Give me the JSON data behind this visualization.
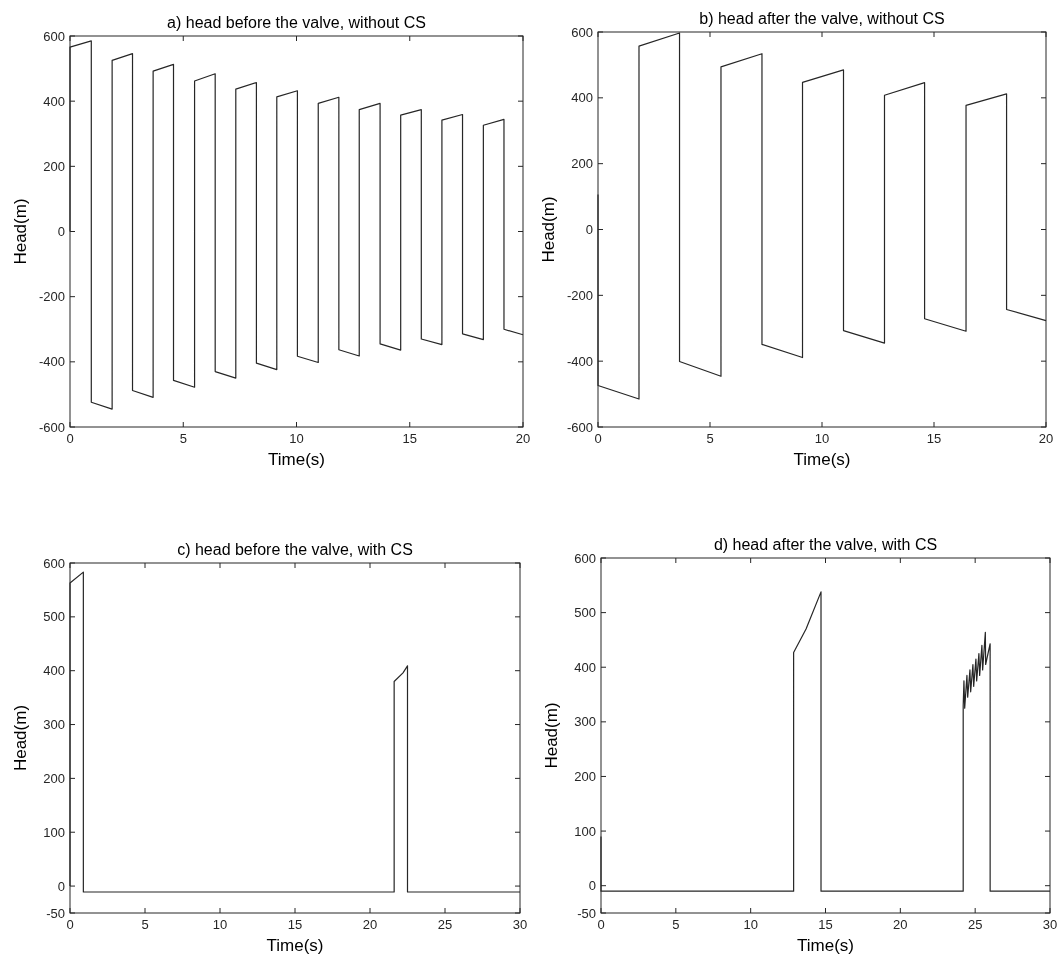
{
  "chart_data": [
    {
      "type": "line",
      "title": "a) head before the valve, without CS",
      "xlabel": "Time(s)",
      "ylabel": "Head(m)",
      "xlim": [
        0,
        20
      ],
      "xticks": [
        0,
        5,
        10,
        15,
        20
      ],
      "ylim": [
        -600,
        600
      ],
      "yticks": [
        -600,
        -400,
        -200,
        0,
        200,
        400,
        600
      ],
      "grid": false,
      "series": [
        {
          "color": "#262626",
          "x": [
            0,
            0,
            0.94,
            0.94,
            1.86,
            1.86,
            2.76,
            2.76,
            3.67,
            3.67,
            4.57,
            4.57,
            5.5,
            5.5,
            6.41,
            6.41,
            7.32,
            7.32,
            8.23,
            8.23,
            9.13,
            9.13,
            10.04,
            10.04,
            10.96,
            10.96,
            11.87,
            11.87,
            12.77,
            12.77,
            13.69,
            13.69,
            14.6,
            14.6,
            15.51,
            15.51,
            16.42,
            16.42,
            17.33,
            17.33,
            18.25,
            18.25,
            19.16,
            19.16,
            20
          ],
          "values": [
            0,
            566,
            585,
            -524,
            -545,
            525,
            546,
            -488,
            -509,
            492,
            513,
            -457,
            -478,
            462,
            484,
            -430,
            -450,
            437,
            457,
            -404,
            -424,
            413,
            432,
            -383,
            -402,
            393,
            412,
            -363,
            -382,
            374,
            393,
            -345,
            -364,
            357,
            374,
            -330,
            -347,
            342,
            359,
            -314,
            -332,
            326,
            344,
            -300,
            -317
          ]
        }
      ]
    },
    {
      "type": "line",
      "title": "b) head after the valve, without CS",
      "xlabel": "Time(s)",
      "ylabel": "Head(m)",
      "xlim": [
        0,
        20
      ],
      "xticks": [
        0,
        5,
        10,
        15,
        20
      ],
      "ylim": [
        -600,
        600
      ],
      "yticks": [
        -600,
        -400,
        -200,
        0,
        200,
        400,
        600
      ],
      "grid": false,
      "series": [
        {
          "color": "#262626",
          "x": [
            0,
            0,
            1.83,
            1.83,
            3.64,
            3.64,
            5.49,
            5.49,
            7.32,
            7.32,
            9.13,
            9.13,
            10.96,
            10.96,
            12.79,
            12.79,
            14.58,
            14.58,
            16.43,
            16.43,
            18.24,
            18.24,
            20
          ],
          "values": [
            106,
            -474,
            -515,
            557,
            597,
            -401,
            -446,
            494,
            534,
            -349,
            -389,
            447,
            485,
            -307,
            -345,
            408,
            446,
            -271,
            -309,
            377,
            412,
            -243,
            -277
          ]
        }
      ]
    },
    {
      "type": "line",
      "title": "c) head before the valve, with CS",
      "xlabel": "Time(s)",
      "ylabel": "Head(m)",
      "xlim": [
        0,
        30
      ],
      "xticks": [
        0,
        5,
        10,
        15,
        20,
        25,
        30
      ],
      "ylim": [
        -50,
        600
      ],
      "yticks": [
        -50,
        0,
        100,
        200,
        300,
        400,
        500,
        600
      ],
      "grid": false,
      "series": [
        {
          "color": "#262626",
          "x": [
            0,
            0,
            0.89,
            0.89,
            21.61,
            21.61,
            22.2,
            22.5,
            22.5,
            30
          ],
          "values": [
            0,
            563,
            583,
            -11,
            -11,
            380,
            396,
            409,
            -11,
            -11
          ]
        }
      ]
    },
    {
      "type": "line",
      "title": "d) head after the valve, with CS",
      "xlabel": "Time(s)",
      "ylabel": "Head(m)",
      "xlim": [
        0,
        30
      ],
      "xticks": [
        0,
        5,
        10,
        15,
        20,
        25,
        30
      ],
      "ylim": [
        -50,
        600
      ],
      "yticks": [
        -50,
        0,
        100,
        200,
        300,
        400,
        500,
        600
      ],
      "grid": false,
      "series": [
        {
          "color": "#262626",
          "x": [
            0,
            0,
            12.87,
            12.87,
            13.7,
            14.7,
            14.7,
            24.2,
            24.2,
            24.25,
            24.3,
            24.45,
            24.5,
            24.65,
            24.7,
            24.85,
            24.9,
            25.05,
            25.1,
            25.25,
            25.3,
            25.45,
            25.5,
            25.68,
            25.7,
            26.0,
            26.0,
            30
          ],
          "values": [
            90,
            -10,
            -10,
            427,
            470,
            538,
            -10,
            -10,
            330,
            375,
            325,
            385,
            345,
            395,
            355,
            405,
            365,
            415,
            375,
            425,
            385,
            440,
            395,
            464,
            405,
            443,
            -10,
            -10
          ]
        }
      ]
    }
  ]
}
